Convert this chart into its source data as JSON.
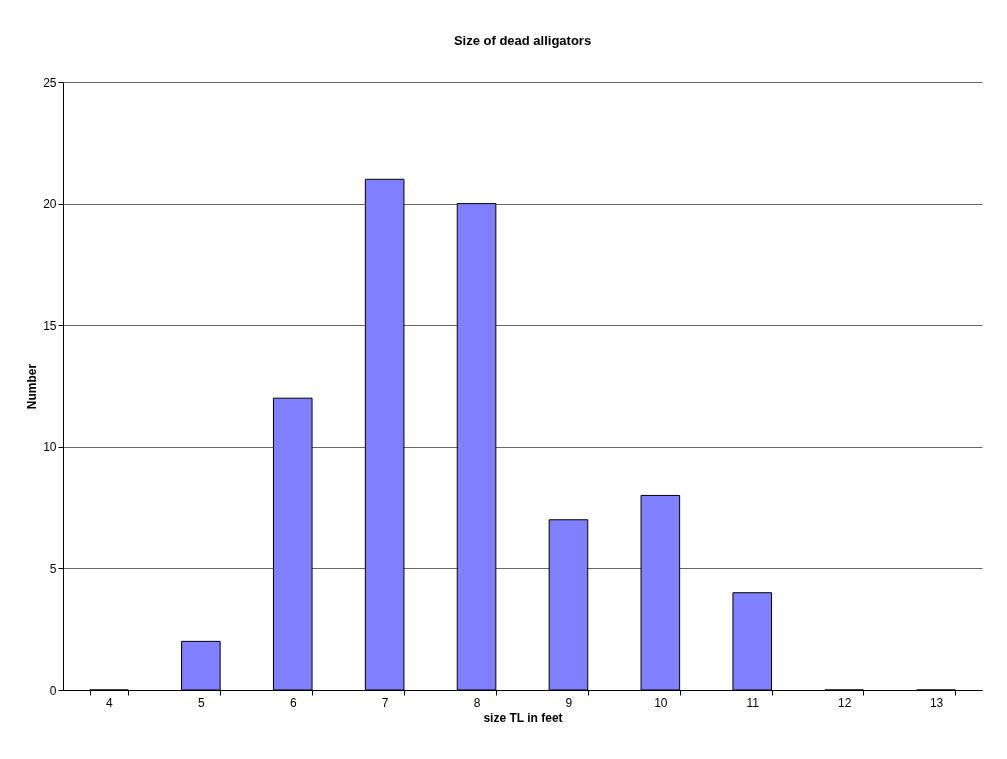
{
  "chart_data": {
    "type": "bar",
    "title": "Size of dead alligators",
    "xlabel": "size TL in feet",
    "ylabel": "Number",
    "categories": [
      "4",
      "5",
      "6",
      "7",
      "8",
      "9",
      "10",
      "11",
      "12",
      "13"
    ],
    "values": [
      0,
      2,
      12,
      21,
      20,
      7,
      8,
      4,
      0,
      0
    ],
    "color": "#8080ff",
    "ylim": [
      0,
      25
    ],
    "yticks": [
      0,
      5,
      10,
      15,
      20,
      25
    ],
    "grid": "y"
  }
}
